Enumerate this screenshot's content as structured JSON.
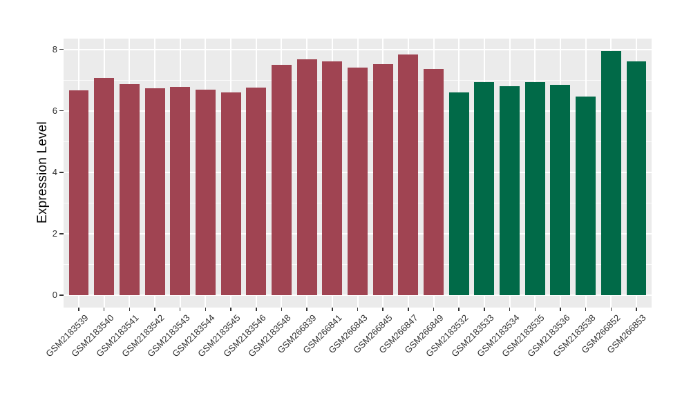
{
  "chart_data": {
    "type": "bar",
    "title": "",
    "ylabel": "Expression Level",
    "xlabel": "",
    "ylim": [
      0,
      8.35
    ],
    "yticks": [
      0,
      2,
      4,
      6,
      8
    ],
    "yticks_minor": [
      1,
      3,
      5,
      7
    ],
    "grid": true,
    "legend_position": "none",
    "panel_bg": "#EBEBEB",
    "grid_color": "#FFFFFF",
    "axis_text_color": "#303030",
    "group_colors": {
      "group1": "#A04452",
      "group2": "#016A48"
    },
    "categories": [
      "GSM2183539",
      "GSM2183540",
      "GSM2183541",
      "GSM2183542",
      "GSM2183543",
      "GSM2183544",
      "GSM2183545",
      "GSM2183546",
      "GSM2183548",
      "GSM266839",
      "GSM266841",
      "GSM266843",
      "GSM266845",
      "GSM266847",
      "GSM266849",
      "GSM2183532",
      "GSM2183533",
      "GSM2183534",
      "GSM2183535",
      "GSM2183536",
      "GSM2183538",
      "GSM266852",
      "GSM266853"
    ],
    "values": [
      6.66,
      7.06,
      6.87,
      6.73,
      6.79,
      6.7,
      6.6,
      6.76,
      7.5,
      7.67,
      7.61,
      7.41,
      7.53,
      7.83,
      7.37,
      6.6,
      6.94,
      6.8,
      6.94,
      6.85,
      6.47,
      7.95,
      7.6
    ],
    "bar_groups": [
      "group1",
      "group1",
      "group1",
      "group1",
      "group1",
      "group1",
      "group1",
      "group1",
      "group1",
      "group1",
      "group1",
      "group1",
      "group1",
      "group1",
      "group1",
      "group2",
      "group2",
      "group2",
      "group2",
      "group2",
      "group2",
      "group2",
      "group2"
    ]
  }
}
